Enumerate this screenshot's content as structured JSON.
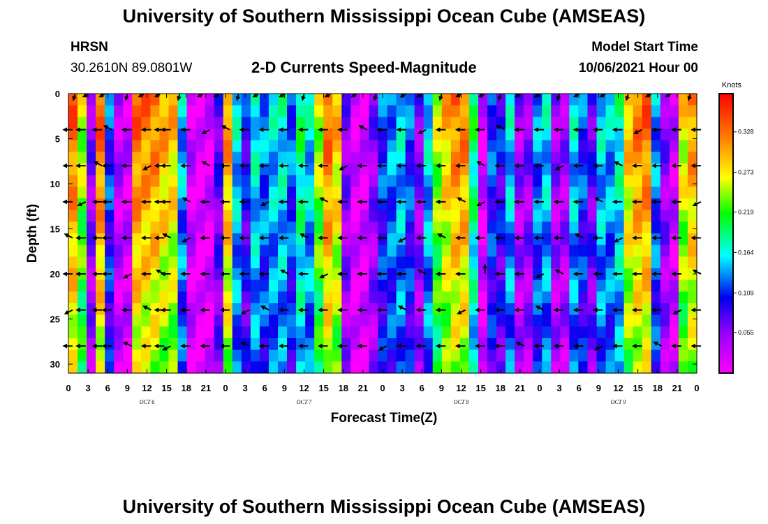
{
  "header": {
    "title": "University of Southern Mississippi Ocean Cube (AMSEAS)",
    "station": "HRSN",
    "coords": "30.2610N  89.0801W",
    "model_label": "Model Start Time",
    "model_time": "10/06/2021 Hour 00",
    "footer_title": "University of Southern Mississippi Ocean Cube (AMSEAS)"
  },
  "chart_data": {
    "type": "heatmap",
    "title": "2-D Currents Speed-Magnitude",
    "xlabel": "Forecast Time(Z)",
    "ylabel": "Depth (ft)",
    "x_hours": [
      0,
      3,
      6,
      9,
      12,
      15,
      18,
      21,
      24,
      27,
      30,
      33,
      36,
      39,
      42,
      45,
      48,
      51,
      54,
      57,
      60,
      63,
      66,
      69,
      72,
      75,
      78,
      81,
      84,
      87,
      90,
      93,
      96
    ],
    "x_tick_labels": [
      "0",
      "3",
      "6",
      "9",
      "12",
      "15",
      "18",
      "21",
      "0",
      "3",
      "6",
      "9",
      "12",
      "15",
      "18",
      "21",
      "0",
      "3",
      "6",
      "9",
      "12",
      "15",
      "18",
      "21",
      "0",
      "3",
      "6",
      "9",
      "12",
      "15",
      "18",
      "21",
      "0"
    ],
    "day_labels": [
      {
        "label": "OCT  6",
        "hour": 12
      },
      {
        "label": "OCT  7",
        "hour": 36
      },
      {
        "label": "OCT  8",
        "hour": 60
      },
      {
        "label": "OCT  9",
        "hour": 84
      }
    ],
    "xlim": [
      0,
      96
    ],
    "y_ticks": [
      0,
      5,
      10,
      15,
      20,
      25,
      30
    ],
    "ylim": [
      0,
      31
    ],
    "colorbar": {
      "unit": "Knots",
      "ticks": [
        "0.328",
        "0.273",
        "0.219",
        "0.164",
        "0.109",
        "0.055"
      ],
      "tick_values": [
        0.328,
        0.273,
        0.219,
        0.164,
        0.109,
        0.055
      ],
      "range": [
        0.0,
        0.38
      ]
    },
    "speed_profile_knots": [
      0.34,
      0.26,
      0.06,
      0.34,
      0.12,
      0.04,
      0.03,
      0.34,
      0.33,
      0.33,
      0.31,
      0.3,
      0.15,
      0.03,
      0.01,
      0.02,
      0.08,
      0.32,
      0.16,
      0.1,
      0.17,
      0.14,
      0.16,
      0.17,
      0.13,
      0.2,
      0.16,
      0.26,
      0.34,
      0.3,
      0.06,
      0.02,
      0.02,
      0.06,
      0.12,
      0.14,
      0.16,
      0.12,
      0.06,
      0.16,
      0.26,
      0.3,
      0.33,
      0.33,
      0.2,
      0.02,
      0.12,
      0.1,
      0.16,
      0.05,
      0.06,
      0.14,
      0.16,
      0.05,
      0.05,
      0.16,
      0.12,
      0.08,
      0.16,
      0.15,
      0.18,
      0.3,
      0.33,
      0.34,
      0.14,
      0.06,
      0.03,
      0.28,
      0.32
    ],
    "vector_depths_ft": [
      4,
      8,
      12,
      16,
      20,
      24,
      28
    ],
    "vector_hours": [
      0,
      2,
      4.5,
      6,
      9,
      12,
      14,
      15,
      18,
      21,
      24,
      27,
      30,
      33,
      36,
      39,
      42,
      45,
      48,
      51,
      54,
      57,
      60,
      63,
      66,
      69,
      72,
      75,
      78,
      81,
      84,
      87,
      90,
      93,
      96
    ],
    "vector_direction": "westward (arrows point left) at most depths"
  }
}
